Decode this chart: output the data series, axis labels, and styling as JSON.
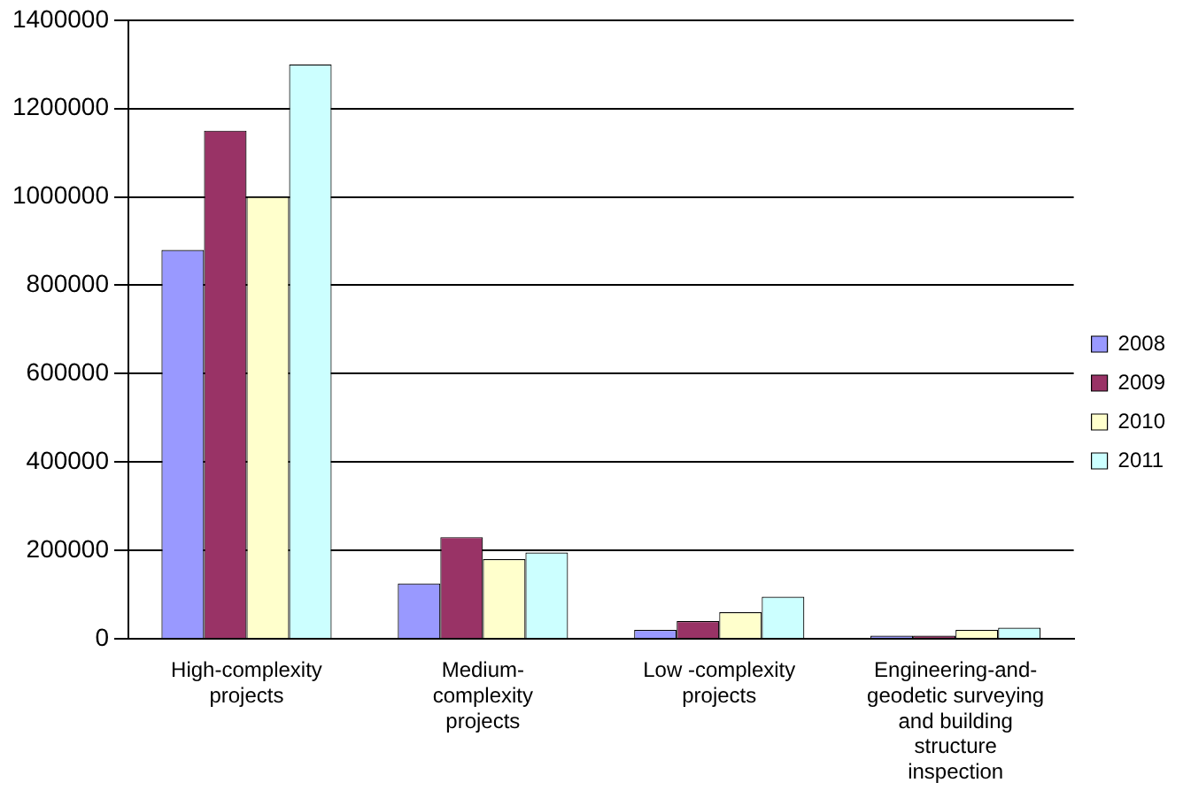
{
  "chart_data": {
    "type": "bar",
    "categories": [
      "High-complexity projects",
      "Medium-complexity projects",
      "Low -complexity projects",
      "Engineering-and-geodetic surveying and building structure inspection"
    ],
    "series": [
      {
        "name": "2008",
        "color": "#9999ff",
        "values": [
          880000,
          125000,
          20000,
          7000
        ]
      },
      {
        "name": "2009",
        "color": "#993366",
        "values": [
          1150000,
          230000,
          40000,
          7000
        ]
      },
      {
        "name": "2010",
        "color": "#ffffcc",
        "values": [
          1000000,
          180000,
          60000,
          20000
        ]
      },
      {
        "name": "2011",
        "color": "#ccffff",
        "values": [
          1300000,
          195000,
          95000,
          25000
        ]
      }
    ],
    "ylim": [
      0,
      1400000
    ],
    "yticks": [
      0,
      200000,
      400000,
      600000,
      800000,
      1000000,
      1200000,
      1400000
    ],
    "grid": "y",
    "legend": "right"
  }
}
